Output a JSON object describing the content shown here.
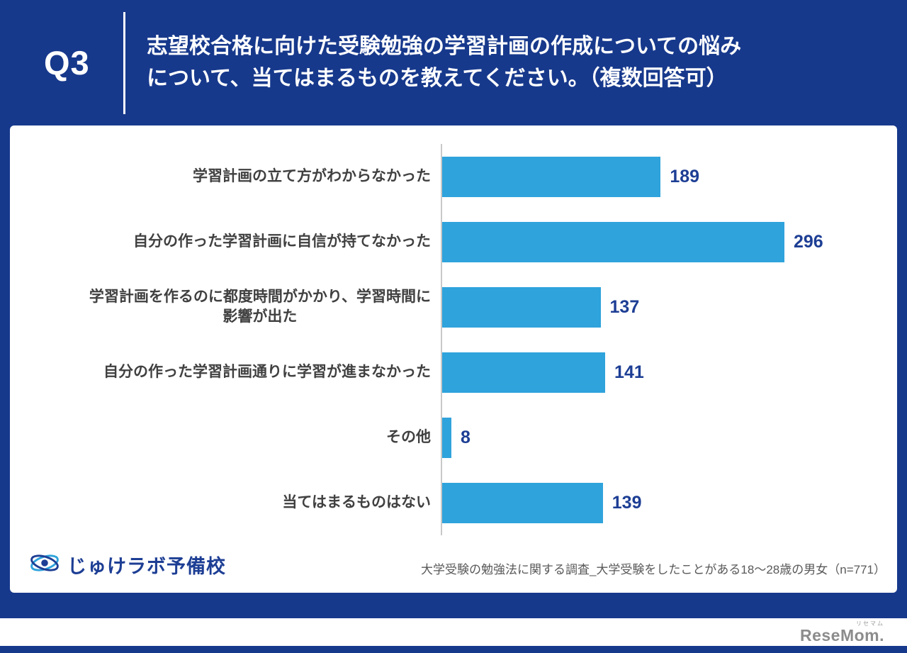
{
  "header": {
    "q_label": "Q3",
    "title_line1": "志望校合格に向けた受験勉強の学習計画の作成についての悩み",
    "title_line2": "について、当てはまるものを教えてください。（複数回答可）"
  },
  "chart_data": {
    "type": "bar",
    "orientation": "horizontal",
    "title": "",
    "categories": [
      "学習計画の立て方がわからなかった",
      "自分の作った学習計画に自信が持てなかった",
      "学習計画を作るのに都度時間がかかり、学習時間に\n影響が出た",
      "自分の作った学習計画通りに学習が進まなかった",
      "その他",
      "当てはまるものはない"
    ],
    "values": [
      189,
      296,
      137,
      141,
      8,
      139
    ],
    "xlim": [
      0,
      380
    ],
    "grid": false,
    "legend": false,
    "bar_color": "#2fa3dc",
    "value_label_color": "#1d3e94",
    "axis_line_color": "#c9c9c9"
  },
  "footer": {
    "logo_text": "じゅけラボ予備校",
    "source_text": "大学受験の勉強法に関する調査_大学受験をしたことがある18〜28歳の男女（n=771）"
  },
  "branding": {
    "resemom_text": "ReseMom.",
    "resemom_small": "リセマム"
  },
  "colors": {
    "background": "#17398c",
    "card": "#ffffff",
    "bar": "#2fa3dc",
    "value_text": "#1d3e94",
    "label_text": "#404040"
  }
}
